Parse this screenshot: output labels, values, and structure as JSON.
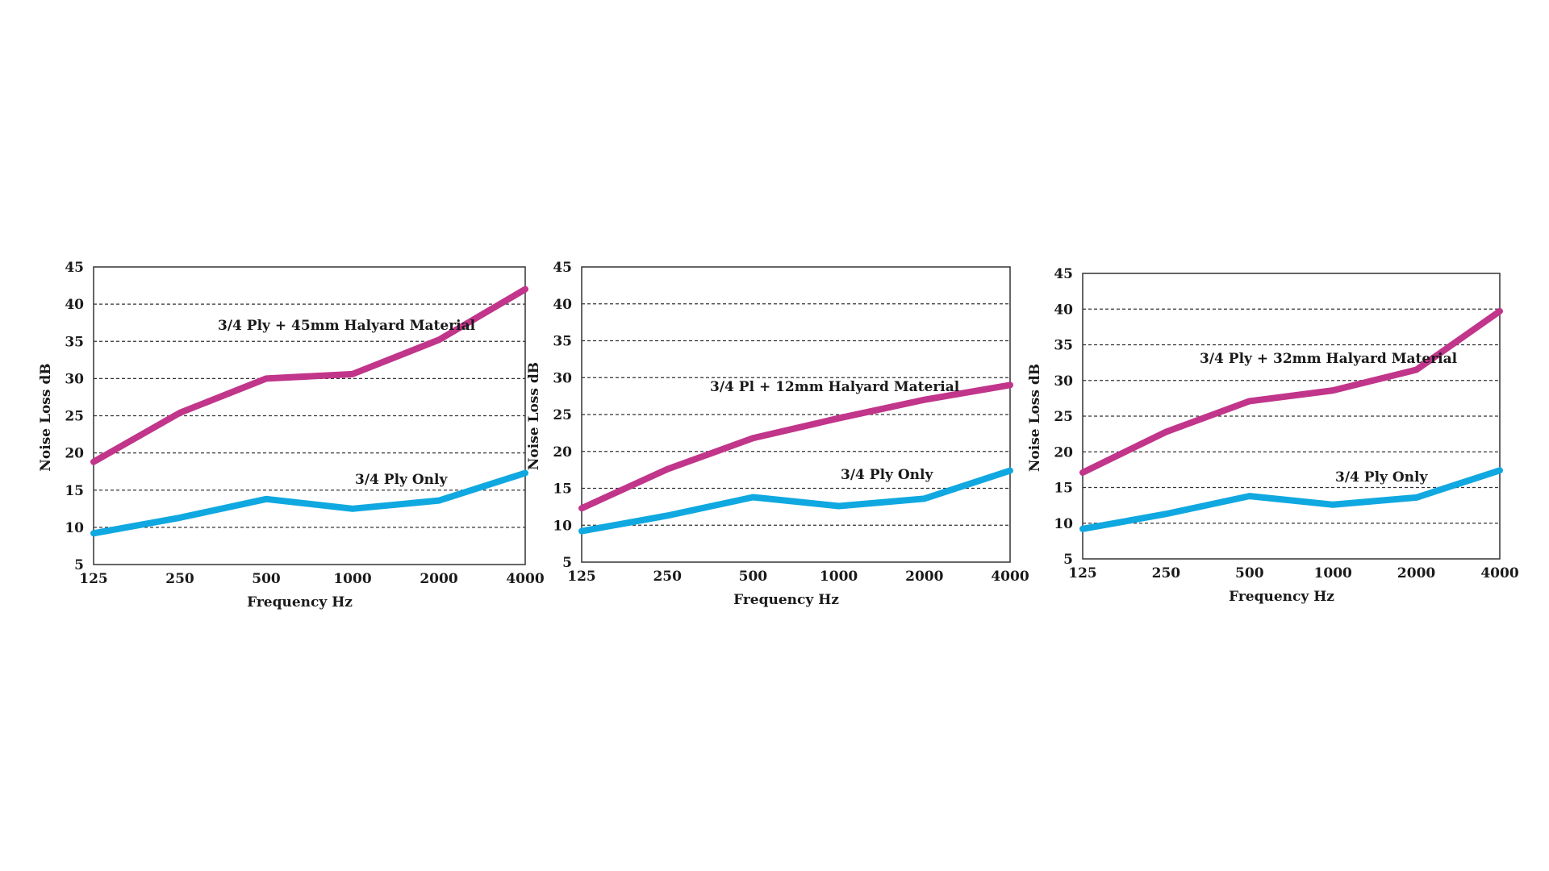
{
  "colors": {
    "halyard": "#c1358a",
    "ply_only": "#10a8e0"
  },
  "chart_data": [
    {
      "type": "line",
      "x": [
        "125",
        "250",
        "500",
        "1000",
        "2000",
        "4000"
      ],
      "xlabel": "Frequency Hz",
      "ylabel": "Noise Loss dB",
      "ylim": [
        5,
        45
      ],
      "yticks": [
        5,
        10,
        15,
        20,
        25,
        30,
        35,
        40,
        45
      ],
      "grid": true,
      "series": [
        {
          "name": "3/4 Ply + 45mm Halyard Material",
          "color": "#c1358a",
          "values": [
            18.8,
            25.4,
            30.0,
            30.6,
            35.2,
            42.0
          ]
        },
        {
          "name": "3/4 Ply Only",
          "color": "#10a8e0",
          "values": [
            9.2,
            11.3,
            13.8,
            12.5,
            13.6,
            17.3
          ]
        }
      ]
    },
    {
      "type": "line",
      "x": [
        "125",
        "250",
        "500",
        "1000",
        "2000",
        "4000"
      ],
      "xlabel": "Frequency Hz",
      "ylabel": "Noise Loss dB",
      "ylim": [
        5,
        45
      ],
      "yticks": [
        5,
        10,
        15,
        20,
        25,
        30,
        35,
        40,
        45
      ],
      "grid": true,
      "series": [
        {
          "name": "3/4 Pl + 12mm Halyard Material",
          "color": "#c1358a",
          "values": [
            12.3,
            17.6,
            21.8,
            24.5,
            27.0,
            29.0
          ]
        },
        {
          "name": "3/4 Ply Only",
          "color": "#10a8e0",
          "values": [
            9.2,
            11.3,
            13.8,
            12.6,
            13.6,
            17.4
          ]
        }
      ]
    },
    {
      "type": "line",
      "x": [
        "125",
        "250",
        "500",
        "1000",
        "2000",
        "4000"
      ],
      "xlabel": "Frequency Hz",
      "ylabel": "Noise Loss dB",
      "ylim": [
        5,
        45
      ],
      "yticks": [
        5,
        10,
        15,
        20,
        25,
        30,
        35,
        40,
        45
      ],
      "grid": true,
      "series": [
        {
          "name": "3/4 Ply + 32mm Halyard Material",
          "color": "#c1358a",
          "values": [
            17.1,
            22.8,
            27.1,
            28.6,
            31.5,
            39.7
          ]
        },
        {
          "name": "3/4 Ply Only",
          "color": "#10a8e0",
          "values": [
            9.2,
            11.3,
            13.8,
            12.6,
            13.6,
            17.4
          ]
        }
      ]
    }
  ]
}
